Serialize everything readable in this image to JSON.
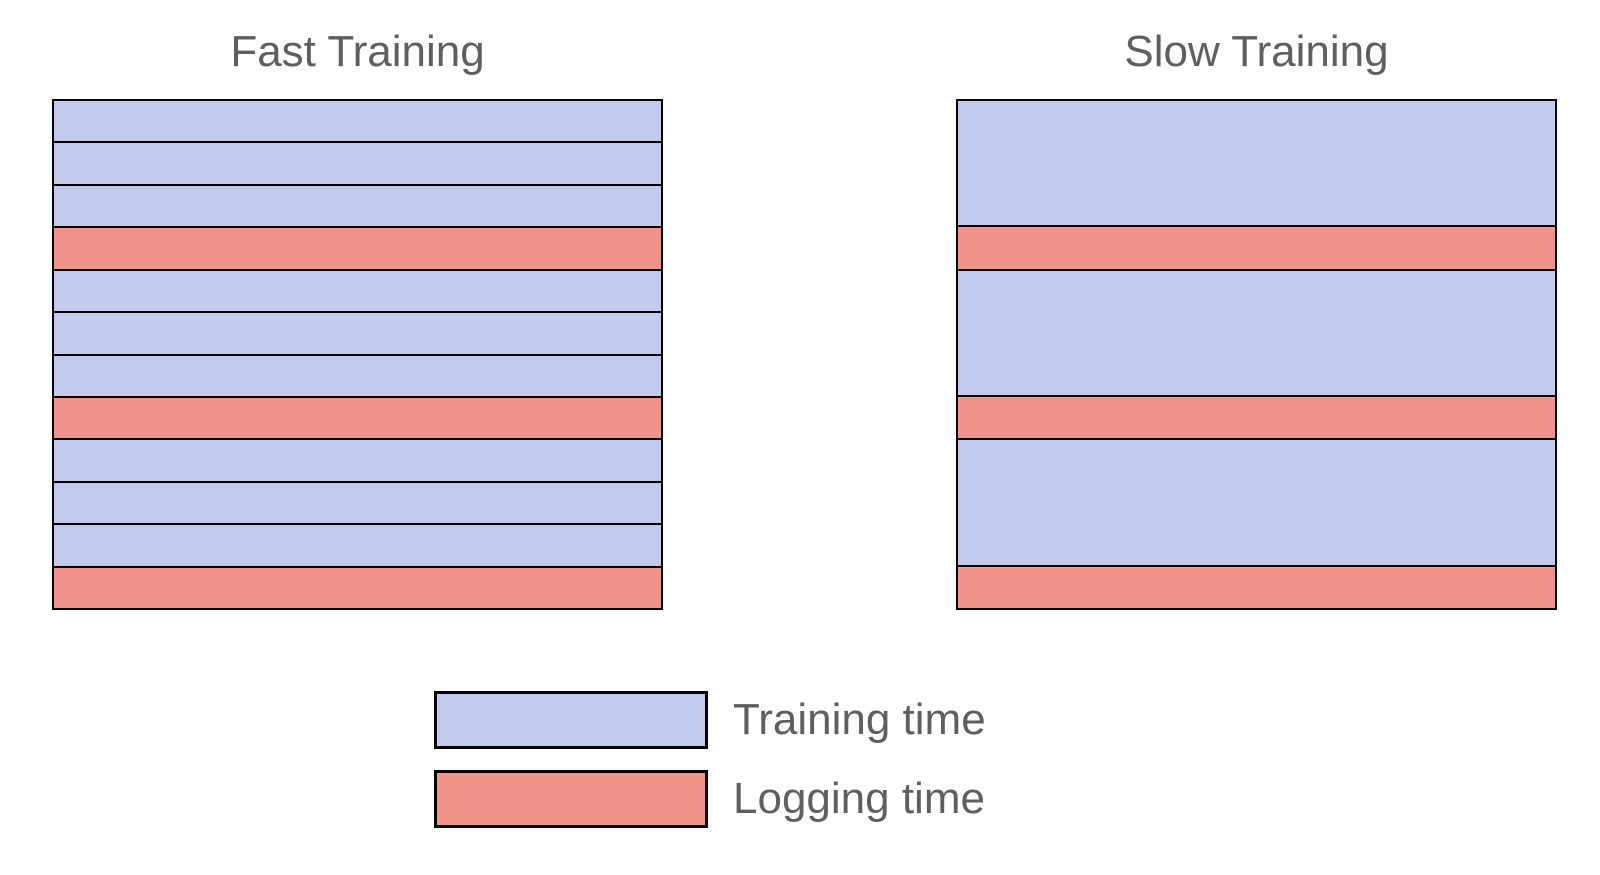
{
  "panels": [
    {
      "title": "Fast Training",
      "segments": [
        {
          "type": "training",
          "units": 1
        },
        {
          "type": "training",
          "units": 1
        },
        {
          "type": "training",
          "units": 1
        },
        {
          "type": "logging",
          "units": 1
        },
        {
          "type": "training",
          "units": 1
        },
        {
          "type": "training",
          "units": 1
        },
        {
          "type": "training",
          "units": 1
        },
        {
          "type": "logging",
          "units": 1
        },
        {
          "type": "training",
          "units": 1
        },
        {
          "type": "training",
          "units": 1
        },
        {
          "type": "training",
          "units": 1
        },
        {
          "type": "logging",
          "units": 1
        }
      ]
    },
    {
      "title": "Slow Training",
      "segments": [
        {
          "type": "training",
          "units": 3
        },
        {
          "type": "logging",
          "units": 1
        },
        {
          "type": "training",
          "units": 3
        },
        {
          "type": "logging",
          "units": 1
        },
        {
          "type": "training",
          "units": 3
        },
        {
          "type": "logging",
          "units": 1
        }
      ]
    }
  ],
  "legend": {
    "items": [
      {
        "type": "training",
        "label": "Training time"
      },
      {
        "type": "logging",
        "label": "Logging time"
      }
    ]
  },
  "colors": {
    "training": "#C2CBEE",
    "logging": "#F0938B",
    "border": "#000000",
    "text": "#5F5F5F",
    "background": "#FFFFFF"
  }
}
